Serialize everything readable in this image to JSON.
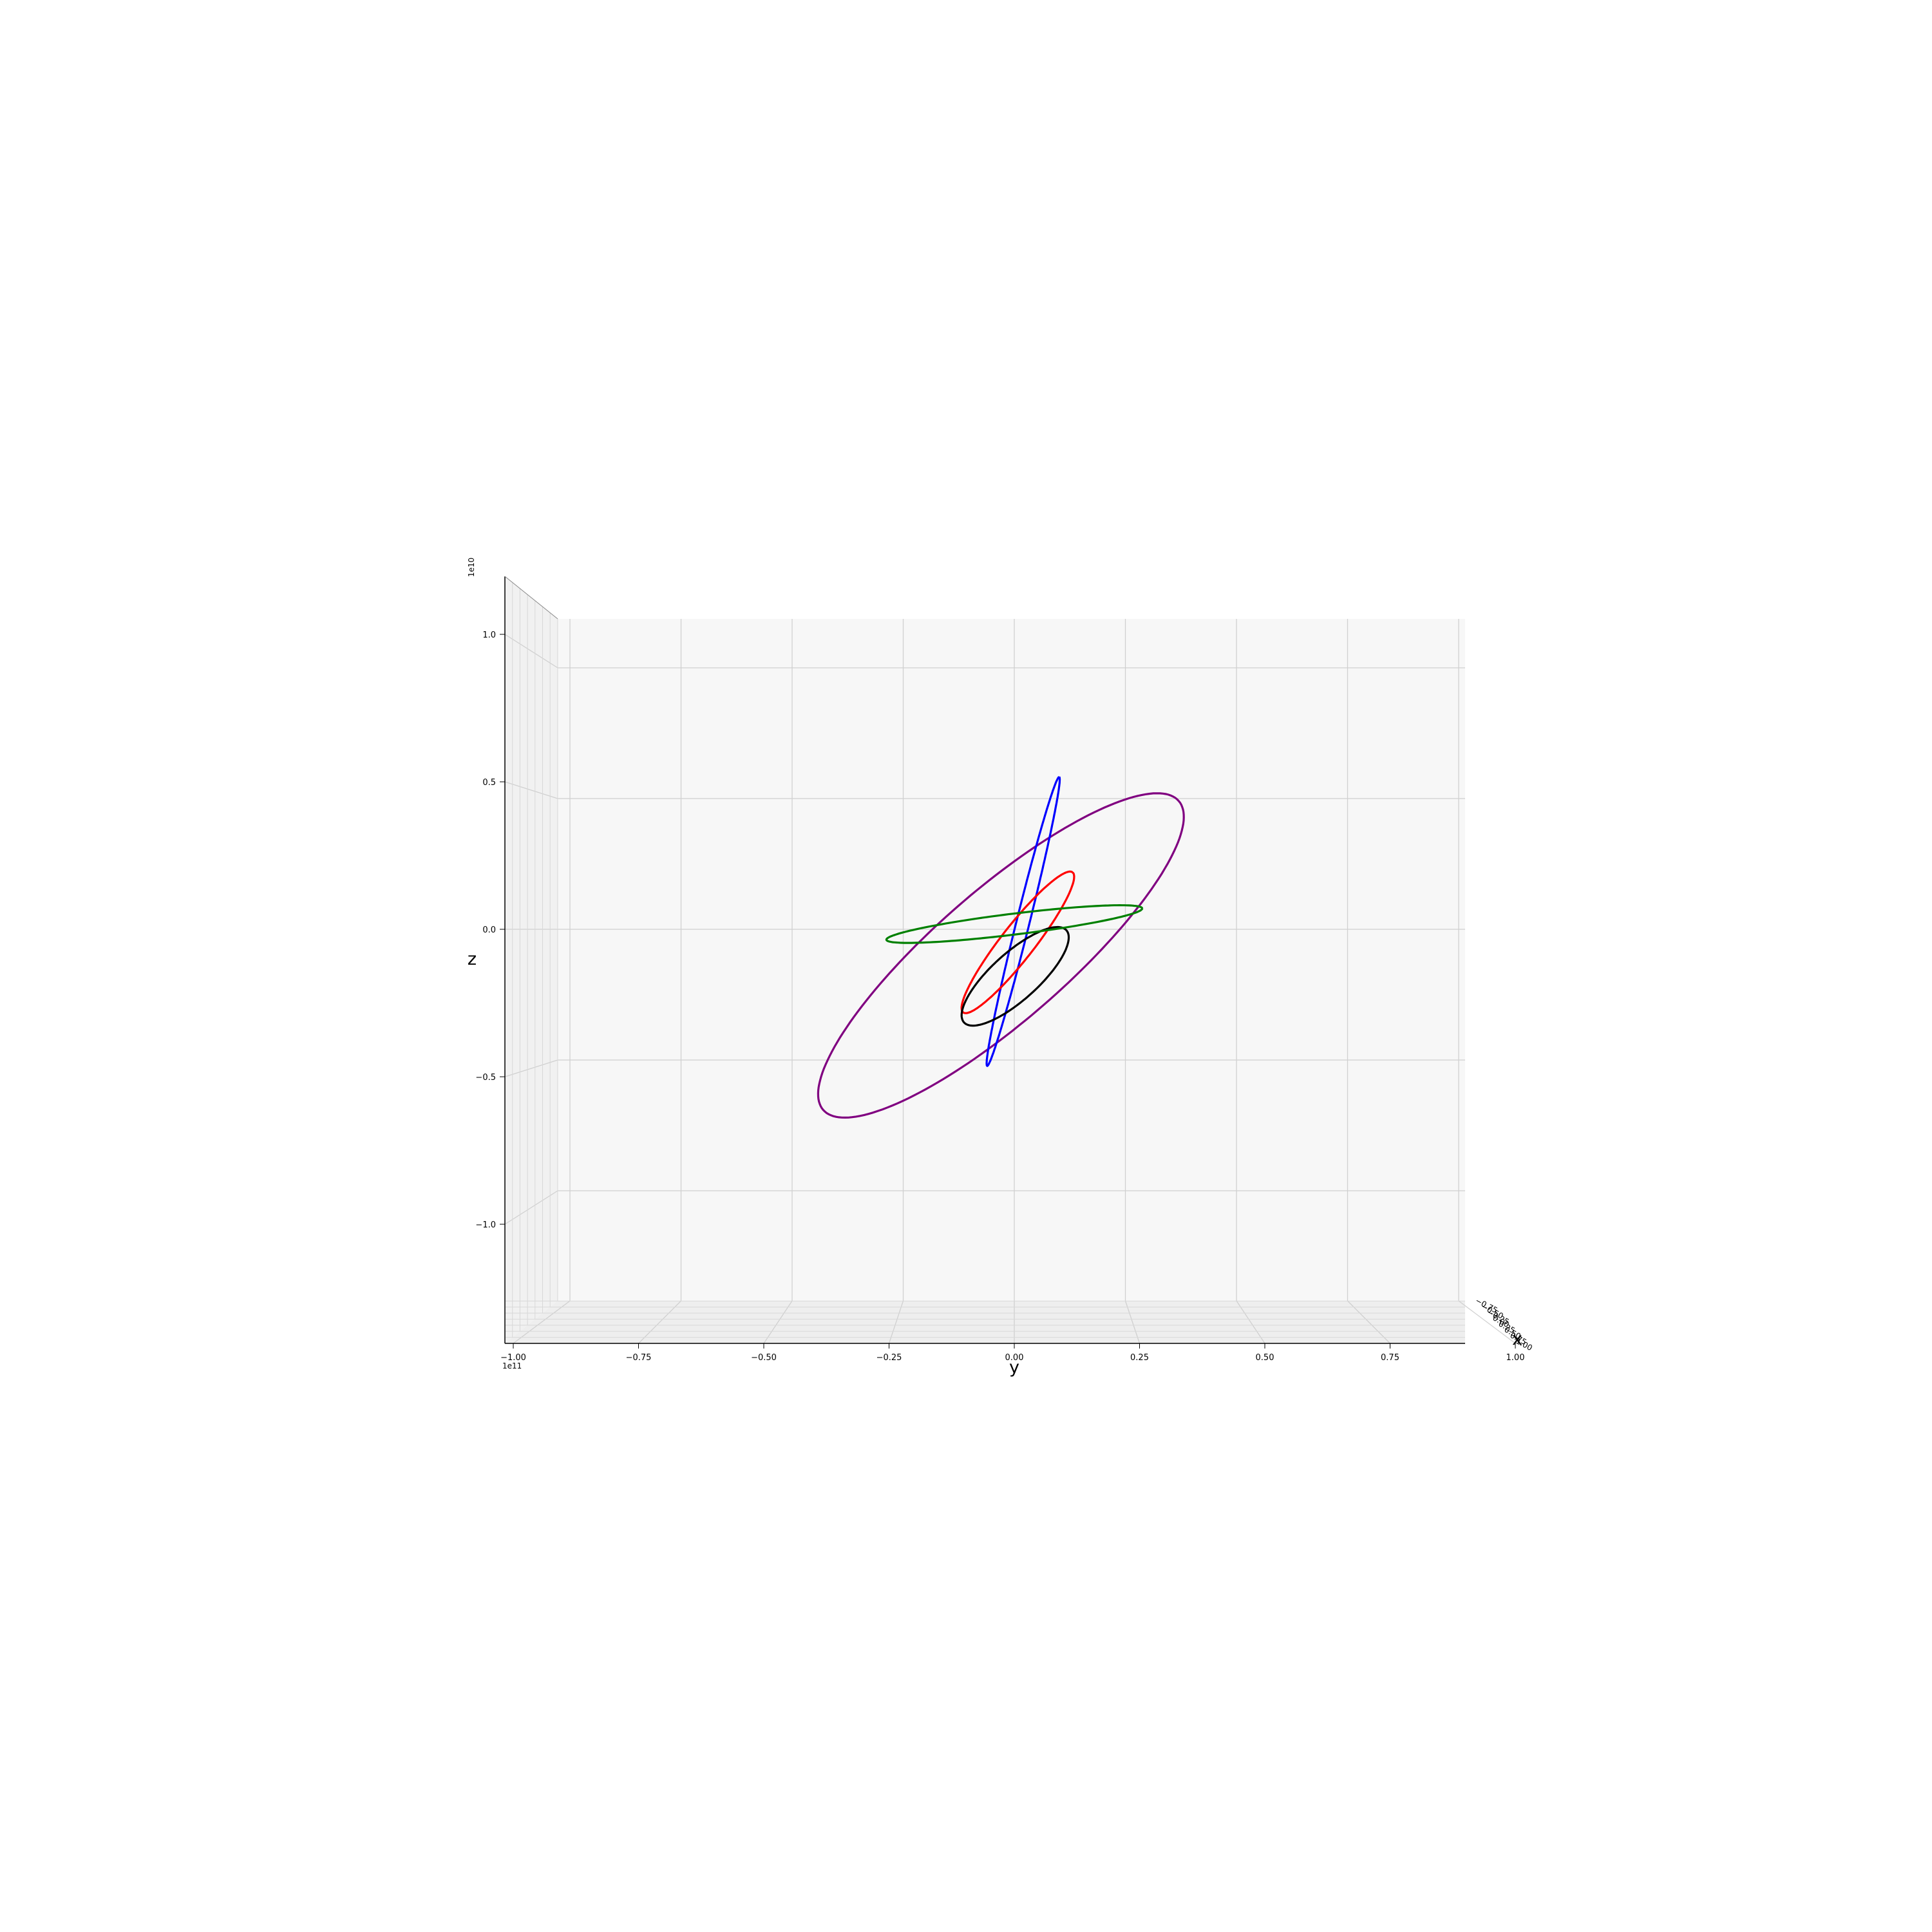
{
  "chart_data": {
    "type": "line",
    "projection": "3d",
    "view": "looking along the x axis (y horizontal, z vertical)",
    "xlabel": "x",
    "ylabel": "y",
    "zlabel": "z",
    "y_ticks": [
      "−1.00",
      "−0.75",
      "−0.50",
      "−0.25",
      "0.00",
      "0.25",
      "0.50",
      "0.75",
      "1.00"
    ],
    "y_tick_values": [
      -1.0,
      -0.75,
      -0.5,
      -0.25,
      0.0,
      0.25,
      0.5,
      0.75,
      1.0
    ],
    "y_offset": "1e11",
    "z_ticks": [
      "−1.0",
      "−0.5",
      "0.0",
      "0.5",
      "1.0"
    ],
    "z_tick_values": [
      -1.0,
      -0.5,
      0.0,
      0.5,
      1.0
    ],
    "z_offset": "1e10",
    "x_ticks": [
      "−0.75",
      "−0.50",
      "−0.25",
      "0.00",
      "0.25",
      "0.50",
      "0.75",
      "1.00"
    ],
    "ylim": [
      -1.0,
      1.0
    ],
    "zlim": [
      -1.4,
      1.12
    ],
    "grid": true,
    "pane_color": "#f7f7f7",
    "series": [
      {
        "color": "#800080",
        "y_center": -0.03,
        "z_center": -0.1,
        "y_radius": 0.53,
        "z_radius": 0.25,
        "rotation_deg": -41
      },
      {
        "color": "#0000ff",
        "y_center": 0.02,
        "z_center": 0.03,
        "y_radius": 0.335,
        "z_radius": 0.025,
        "rotation_deg": -76
      },
      {
        "color": "#ff0000",
        "y_center": 0.008,
        "z_center": -0.05,
        "y_radius": 0.2,
        "z_radius": 0.064,
        "rotation_deg": -52
      },
      {
        "color": "#000000",
        "y_center": 0.002,
        "z_center": -0.18,
        "y_radius": 0.155,
        "z_radius": 0.09,
        "rotation_deg": -42
      },
      {
        "color": "#008000",
        "y_center": 0.0,
        "z_center": 0.02,
        "y_radius": 0.29,
        "z_radius": 0.04,
        "rotation_deg": -7
      }
    ]
  }
}
